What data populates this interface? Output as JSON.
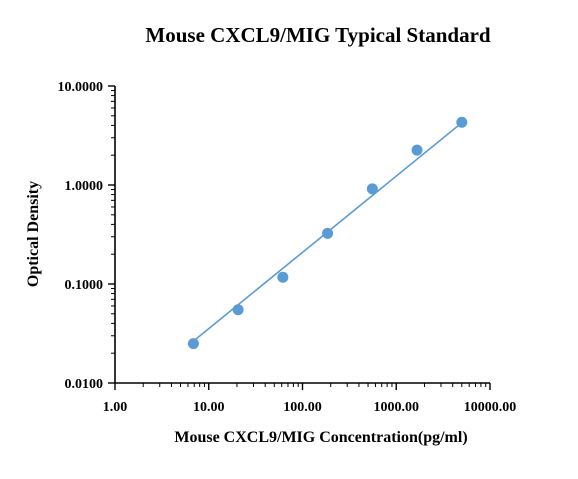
{
  "chart_data": {
    "type": "scatter",
    "title": "Mouse CXCL9/MIG Typical Standard",
    "xlabel": "Mouse CXCL9/MIG Concentration(pg/ml)",
    "ylabel": "Optical Density",
    "x_scale": "log",
    "y_scale": "log",
    "xlim": [
      1,
      10000
    ],
    "ylim": [
      0.01,
      10
    ],
    "x_ticks": [
      1,
      10,
      100,
      1000,
      10000
    ],
    "x_tick_labels": [
      "1.00",
      "10.00",
      "100.00",
      "1000.00",
      "10000.00"
    ],
    "y_ticks": [
      0.01,
      0.1,
      1,
      10
    ],
    "y_tick_labels": [
      "0.0100",
      "0.1000",
      "1.0000",
      "10.0000"
    ],
    "grid": false,
    "legend": "none",
    "series": [
      {
        "x": [
          6.86,
          20.58,
          61.73,
          185.19,
          555.56,
          1666.67,
          5000
        ],
        "y": [
          0.025,
          0.055,
          0.117,
          0.325,
          0.915,
          2.25,
          4.3
        ],
        "color": "#5b9bd5"
      }
    ],
    "fit_line": {
      "x": [
        6.86,
        5000
      ],
      "y": [
        0.0265,
        4.25
      ],
      "color": "#5b9bd5"
    }
  }
}
